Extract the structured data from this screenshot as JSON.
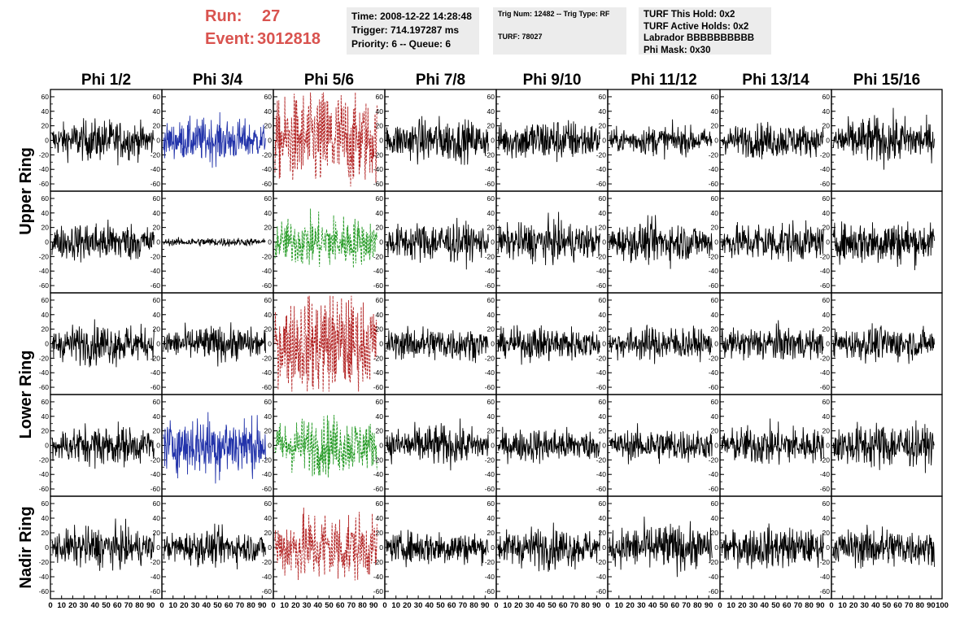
{
  "header": {
    "run_label": "Run:",
    "run_value": "27",
    "event_label": "Event:",
    "event_value": "3012818"
  },
  "info_time": {
    "time": "Time: 2008-12-22 14:28:48",
    "trigger": "Trigger: 714.197287 ms",
    "priority": "Priority: 6 -- Queue: 6"
  },
  "info_trig": {
    "trig": "Trig Num: 12482 -- Trig Type: RF",
    "turf": "TURF: 78027"
  },
  "info_turf": {
    "this_hold": "TURF This Hold: 0x2",
    "active_holds": "TURF Active Holds: 0x2",
    "labrador": "Labrador BBBBBBBBBB",
    "phi_mask": "Phi Mask: 0x30"
  },
  "columns": [
    "Phi 1/2",
    "Phi 3/4",
    "Phi 5/6",
    "Phi 7/8",
    "Phi 9/10",
    "Phi 11/12",
    "Phi 13/14",
    "Phi 15/16"
  ],
  "rings": [
    "Upper Ring",
    "Lower Ring",
    "Nadir Ring"
  ],
  "y_ticks": [
    "60",
    "40",
    "20",
    "0",
    "-20",
    "-40",
    "-60"
  ],
  "x_ticks": [
    "0",
    "10",
    "20",
    "30",
    "40",
    "50",
    "60",
    "70",
    "80",
    "90",
    "100"
  ],
  "colors": {
    "header_red": "#d9534f",
    "trace_black": "#000000",
    "trace_blue": "#2233aa",
    "trace_red": "#b22222",
    "trace_green": "#229922",
    "info_bg": "#ececec"
  },
  "panels": [
    [
      {
        "color": "black",
        "amp": 14,
        "style": "solid"
      },
      {
        "color": "blue",
        "amp": 15,
        "style": "solid"
      },
      {
        "color": "red",
        "amp": 35,
        "style": "dashed"
      },
      {
        "color": "black",
        "amp": 15,
        "style": "solid"
      },
      {
        "color": "black",
        "amp": 15,
        "style": "solid"
      },
      {
        "color": "black",
        "amp": 10,
        "style": "solid"
      },
      {
        "color": "black",
        "amp": 12,
        "style": "solid"
      },
      {
        "color": "black",
        "amp": 16,
        "style": "solid"
      }
    ],
    [
      {
        "color": "black",
        "amp": 14,
        "style": "solid"
      },
      {
        "color": "black",
        "amp": 3,
        "style": "solid"
      },
      {
        "color": "green",
        "amp": 18,
        "style": "dashed"
      },
      {
        "color": "black",
        "amp": 14,
        "style": "solid"
      },
      {
        "color": "black",
        "amp": 14,
        "style": "solid"
      },
      {
        "color": "black",
        "amp": 14,
        "style": "solid"
      },
      {
        "color": "black",
        "amp": 14,
        "style": "solid"
      },
      {
        "color": "black",
        "amp": 16,
        "style": "solid"
      }
    ],
    [
      {
        "color": "black",
        "amp": 14,
        "style": "solid"
      },
      {
        "color": "black",
        "amp": 12,
        "style": "solid"
      },
      {
        "color": "red",
        "amp": 35,
        "style": "dashed"
      },
      {
        "color": "black",
        "amp": 12,
        "style": "solid"
      },
      {
        "color": "black",
        "amp": 12,
        "style": "solid"
      },
      {
        "color": "black",
        "amp": 12,
        "style": "solid"
      },
      {
        "color": "black",
        "amp": 12,
        "style": "solid"
      },
      {
        "color": "black",
        "amp": 12,
        "style": "solid"
      }
    ],
    [
      {
        "color": "black",
        "amp": 14,
        "style": "solid"
      },
      {
        "color": "blue",
        "amp": 22,
        "style": "solid"
      },
      {
        "color": "green",
        "amp": 20,
        "style": "dashed"
      },
      {
        "color": "black",
        "amp": 14,
        "style": "solid"
      },
      {
        "color": "black",
        "amp": 12,
        "style": "solid"
      },
      {
        "color": "black",
        "amp": 12,
        "style": "solid"
      },
      {
        "color": "black",
        "amp": 14,
        "style": "solid"
      },
      {
        "color": "black",
        "amp": 16,
        "style": "solid"
      }
    ],
    [
      {
        "color": "black",
        "amp": 14,
        "style": "solid"
      },
      {
        "color": "black",
        "amp": 12,
        "style": "solid"
      },
      {
        "color": "red",
        "amp": 25,
        "style": "dashed"
      },
      {
        "color": "black",
        "amp": 12,
        "style": "solid"
      },
      {
        "color": "black",
        "amp": 14,
        "style": "solid"
      },
      {
        "color": "black",
        "amp": 16,
        "style": "solid"
      },
      {
        "color": "black",
        "amp": 14,
        "style": "solid"
      },
      {
        "color": "black",
        "amp": 14,
        "style": "solid"
      }
    ]
  ]
}
